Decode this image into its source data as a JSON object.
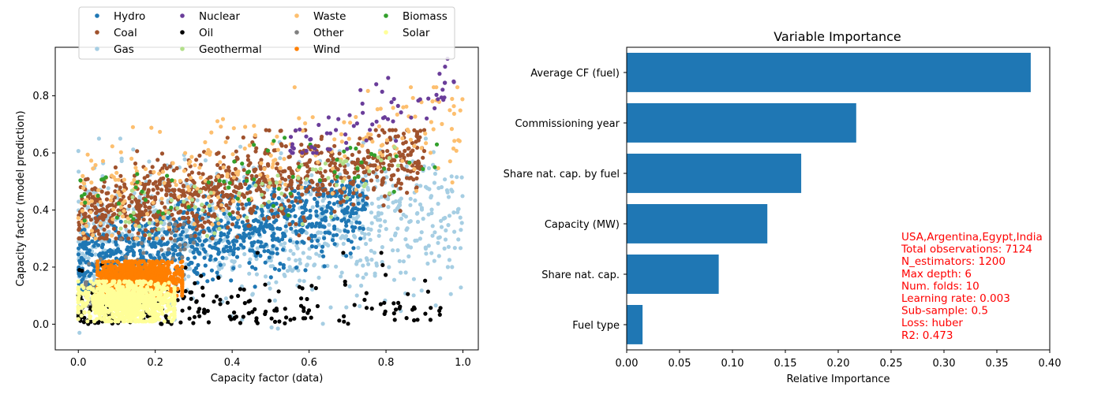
{
  "chart_data": [
    {
      "type": "scatter",
      "xlabel": "Capacity factor (data)",
      "ylabel": "Capacity factor (model prediction)",
      "xlim": [
        -0.06,
        1.04
      ],
      "ylim": [
        -0.09,
        0.97
      ],
      "xticks": [
        "0.0",
        "0.2",
        "0.4",
        "0.6",
        "0.8",
        "1.0"
      ],
      "xtick_values": [
        0.0,
        0.2,
        0.4,
        0.6,
        0.8,
        1.0
      ],
      "yticks": [
        "0.0",
        "0.2",
        "0.4",
        "0.6",
        "0.8"
      ],
      "ytick_values": [
        0.0,
        0.2,
        0.4,
        0.6,
        0.8
      ],
      "grid": false,
      "legend_position": "top-center",
      "legend_columns": 4,
      "series": [
        {
          "name": "Hydro",
          "color": "#1f77b4",
          "x_range": [
            0.0,
            0.75
          ],
          "y_range": [
            0.12,
            0.5
          ],
          "trend": "rising-cloud",
          "density": "high"
        },
        {
          "name": "Coal",
          "color": "#a0522d",
          "x_range": [
            0.0,
            0.9
          ],
          "y_range": [
            0.3,
            0.68
          ],
          "trend": "rising-cloud",
          "density": "high"
        },
        {
          "name": "Gas",
          "color": "#a6cee3",
          "x_range": [
            0.0,
            1.0
          ],
          "y_range": [
            -0.03,
            0.65
          ],
          "trend": "wide-spread",
          "density": "high"
        },
        {
          "name": "Nuclear",
          "color": "#6a3d9a",
          "x_range": [
            0.55,
            0.99
          ],
          "y_range": [
            0.6,
            0.93
          ],
          "trend": "upper-right",
          "density": "low"
        },
        {
          "name": "Oil",
          "color": "#000000",
          "x_range": [
            0.0,
            0.95
          ],
          "y_range": [
            0.0,
            0.25
          ],
          "trend": "flat-low",
          "density": "medium"
        },
        {
          "name": "Geothermal",
          "color": "#b2df8a",
          "x_range": [
            0.1,
            0.85
          ],
          "y_range": [
            0.3,
            0.62
          ],
          "trend": "rising-cloud",
          "density": "low"
        },
        {
          "name": "Waste",
          "color": "#fdbf6f",
          "x_range": [
            0.0,
            1.0
          ],
          "y_range": [
            0.3,
            0.83
          ],
          "trend": "rising-cloud",
          "density": "medium"
        },
        {
          "name": "Other",
          "color": "#808080",
          "x_range": [
            0.0,
            0.3
          ],
          "y_range": [
            0.02,
            0.35
          ],
          "trend": "cluster",
          "density": "low"
        },
        {
          "name": "Wind",
          "color": "#ff7f00",
          "x_range": [
            0.05,
            0.27
          ],
          "y_range": [
            0.1,
            0.22
          ],
          "trend": "tight-cluster",
          "density": "high"
        },
        {
          "name": "Biomass",
          "color": "#33a02c",
          "x_range": [
            0.0,
            0.95
          ],
          "y_range": [
            0.35,
            0.66
          ],
          "trend": "rising-cloud",
          "density": "low"
        },
        {
          "name": "Solar",
          "color": "#ffff99",
          "x_range": [
            0.0,
            0.25
          ],
          "y_range": [
            0.01,
            0.15
          ],
          "trend": "tight-cluster",
          "density": "high"
        }
      ]
    },
    {
      "type": "bar",
      "orientation": "horizontal",
      "title": "Variable Importance",
      "xlabel": "Relative Importance",
      "xlim": [
        0.0,
        0.4
      ],
      "xticks": [
        "0.00",
        "0.05",
        "0.10",
        "0.15",
        "0.20",
        "0.25",
        "0.30",
        "0.35",
        "0.40"
      ],
      "xtick_values": [
        0.0,
        0.05,
        0.1,
        0.15,
        0.2,
        0.25,
        0.3,
        0.35,
        0.4
      ],
      "categories": [
        "Average CF (fuel)",
        "Commissioning year",
        "Share nat. cap. by fuel",
        "Capacity (MW)",
        "Share nat. cap.",
        "Fuel type"
      ],
      "values": [
        0.382,
        0.217,
        0.165,
        0.133,
        0.087,
        0.015
      ],
      "color": "#1f77b4",
      "grid": false,
      "annotation": [
        "USA,Argentina,Egypt,India",
        "Total observations: 7124",
        "N_estimators: 1200",
        "Max depth: 6",
        "Num. folds: 10",
        "Learning rate: 0.003",
        "Sub-sample: 0.5",
        "Loss: huber",
        "R2: 0.473"
      ],
      "annotation_color": "#ff0000"
    }
  ]
}
